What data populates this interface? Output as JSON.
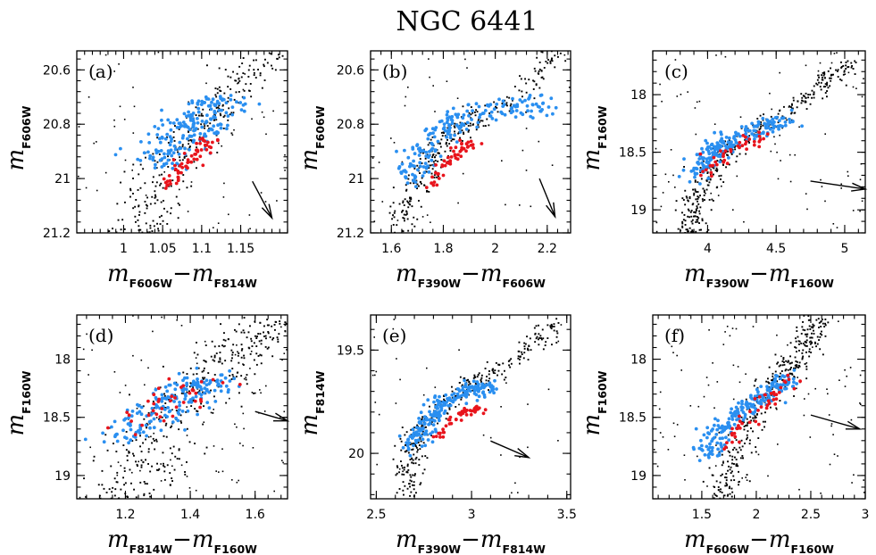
{
  "title": "NGC 6441",
  "colors": {
    "first_gen": "#2a8ff0",
    "second_gen": "#e8141c",
    "field": "#000000"
  },
  "chart_data": [
    {
      "type": "scatter",
      "panel": "(a)",
      "xlabel": {
        "m": "m",
        "s1": "F606W",
        "dash": "−",
        "m2": "m",
        "s2": "F814W"
      },
      "ylabel": {
        "m": "m",
        "s1": "F606W"
      },
      "xlim": [
        0.94,
        1.21
      ],
      "ylim": [
        21.2,
        20.53
      ],
      "xticks": [
        1,
        1.05,
        1.1,
        1.15
      ],
      "xtick_labels": [
        "1",
        "1.05",
        "1.1",
        "1.15"
      ],
      "yticks": [
        20.6,
        20.8,
        21,
        21.2
      ],
      "ytick_labels": [
        "20.6",
        "20.8",
        "21",
        "21.2"
      ],
      "arrow": {
        "x1": 1.165,
        "y1": 21.01,
        "x2": 1.19,
        "y2": 21.145
      },
      "blue_seq": {
        "x": [
          1.04,
          1.07,
          1.1,
          1.13
        ],
        "y": [
          20.98,
          20.85,
          20.78,
          20.7
        ],
        "scatter": 0.022,
        "n": 200
      },
      "red_seq": {
        "x": [
          1.05,
          1.075,
          1.1,
          1.115
        ],
        "y": [
          21.04,
          20.97,
          20.9,
          20.85
        ],
        "scatter": 0.009,
        "n": 60
      },
      "field_seq": {
        "x": [
          1.01,
          1.03,
          1.06,
          1.1,
          1.15,
          1.2
        ],
        "y": [
          21.25,
          21.1,
          20.95,
          20.8,
          20.65,
          20.5
        ],
        "scatter": 0.02,
        "n": 320
      },
      "noise": 60
    },
    {
      "type": "scatter",
      "panel": "(b)",
      "xlabel": {
        "m": "m",
        "s1": "F390W",
        "dash": "−",
        "m2": "m",
        "s2": "F606W"
      },
      "ylabel": {
        "m": "m",
        "s1": "F606W"
      },
      "xlim": [
        1.52,
        2.29
      ],
      "ylim": [
        21.2,
        20.53
      ],
      "xticks": [
        1.6,
        1.8,
        2,
        2.2
      ],
      "xtick_labels": [
        "1.6",
        "1.8",
        "2",
        "2.2"
      ],
      "yticks": [
        20.6,
        20.8,
        21,
        21.2
      ],
      "ytick_labels": [
        "20.6",
        "20.8",
        "21",
        "21.2"
      ],
      "arrow": {
        "x1": 2.17,
        "y1": 21.0,
        "x2": 2.23,
        "y2": 21.14
      },
      "blue_seq": {
        "x": [
          1.66,
          1.72,
          1.8,
          1.9,
          2.05,
          2.2
        ],
        "y": [
          21.0,
          20.92,
          20.82,
          20.76,
          20.74,
          20.73
        ],
        "scatter": 0.035,
        "n": 200
      },
      "red_seq": {
        "x": [
          1.75,
          1.8,
          1.86,
          1.92
        ],
        "y": [
          21.03,
          20.96,
          20.9,
          20.86
        ],
        "scatter": 0.02,
        "n": 50
      },
      "field_seq": {
        "x": [
          1.62,
          1.64,
          1.68,
          1.74,
          1.8,
          1.9,
          2.05,
          2.18,
          2.25
        ],
        "y": [
          21.25,
          21.15,
          21.05,
          20.95,
          20.85,
          20.8,
          20.72,
          20.62,
          20.5
        ],
        "scatter": 0.03,
        "n": 320
      },
      "noise": 40
    },
    {
      "type": "scatter",
      "panel": "(c)",
      "xlabel": {
        "m": "m",
        "s1": "F390W",
        "dash": "−",
        "m2": "m",
        "s2": "F160W"
      },
      "ylabel": {
        "m": "m",
        "s1": "F160W"
      },
      "xlim": [
        3.6,
        5.15
      ],
      "ylim": [
        19.2,
        17.62
      ],
      "xticks": [
        4,
        4.5,
        5
      ],
      "xtick_labels": [
        "4",
        "4.5",
        "5"
      ],
      "yticks": [
        18,
        18.5,
        19
      ],
      "ytick_labels": [
        "18",
        "18.5",
        "19"
      ],
      "arrow": {
        "x1": 4.75,
        "y1": 18.75,
        "x2": 5.15,
        "y2": 18.82
      },
      "blue_seq": {
        "x": [
          3.9,
          4.0,
          4.1,
          4.3,
          4.6
        ],
        "y": [
          18.7,
          18.55,
          18.45,
          18.32,
          18.22
        ],
        "scatter": 0.06,
        "n": 200
      },
      "red_seq": {
        "x": [
          3.95,
          4.1,
          4.25,
          4.4
        ],
        "y": [
          18.72,
          18.55,
          18.43,
          18.34
        ],
        "scatter": 0.04,
        "n": 40
      },
      "field_seq": {
        "x": [
          3.85,
          3.9,
          4.0,
          4.2,
          4.5,
          4.8,
          5.05
        ],
        "y": [
          19.25,
          19.0,
          18.7,
          18.42,
          18.2,
          17.95,
          17.7
        ],
        "scatter": 0.06,
        "n": 360
      },
      "noise": 80
    },
    {
      "type": "scatter",
      "panel": "(d)",
      "xlabel": {
        "m": "m",
        "s1": "F814W",
        "dash": "−",
        "m2": "m",
        "s2": "F160W"
      },
      "ylabel": {
        "m": "m",
        "s1": "F160W"
      },
      "xlim": [
        1.05,
        1.7
      ],
      "ylim": [
        19.2,
        17.62
      ],
      "xticks": [
        1.2,
        1.4,
        1.6
      ],
      "xtick_labels": [
        "1.2",
        "1.4",
        "1.6"
      ],
      "yticks": [
        18,
        18.5,
        19
      ],
      "ytick_labels": [
        "18",
        "18.5",
        "19"
      ],
      "arrow": {
        "x1": 1.6,
        "y1": 18.45,
        "x2": 1.7,
        "y2": 18.53
      },
      "blue_seq": {
        "x": [
          1.2,
          1.28,
          1.35,
          1.42,
          1.48
        ],
        "y": [
          18.68,
          18.5,
          18.35,
          18.25,
          18.15
        ],
        "scatter": 0.06,
        "n": 180
      },
      "red_seq": {
        "x": [
          1.22,
          1.3,
          1.38,
          1.45
        ],
        "y": [
          18.6,
          18.45,
          18.3,
          18.2
        ],
        "scatter": 0.05,
        "n": 40
      },
      "field_seq": {
        "x": [
          1.22,
          1.24,
          1.3,
          1.4,
          1.5,
          1.58,
          1.66
        ],
        "y": [
          19.25,
          18.95,
          18.65,
          18.35,
          18.05,
          17.85,
          17.65
        ],
        "scatter": 0.07,
        "n": 380
      },
      "noise": 100
    },
    {
      "type": "scatter",
      "panel": "(e)",
      "xlabel": {
        "m": "m",
        "s1": "F390W",
        "dash": "−",
        "m2": "m",
        "s2": "F814W"
      },
      "ylabel": {
        "m": "m",
        "s1": "F814W"
      },
      "xlim": [
        2.47,
        3.52
      ],
      "ylim": [
        20.22,
        19.33
      ],
      "xticks": [
        2.5,
        3,
        3.5
      ],
      "xtick_labels": [
        "2.5",
        "3",
        "3.5"
      ],
      "yticks": [
        19.5,
        20
      ],
      "ytick_labels": [
        "19.5",
        "20"
      ],
      "arrow": {
        "x1": 3.1,
        "y1": 19.94,
        "x2": 3.3,
        "y2": 20.02
      },
      "blue_seq": {
        "x": [
          2.68,
          2.73,
          2.8,
          2.9,
          3.0,
          3.1
        ],
        "y": [
          19.97,
          19.9,
          19.8,
          19.72,
          19.68,
          19.68
        ],
        "scatter": 0.035,
        "n": 200
      },
      "red_seq": {
        "x": [
          2.82,
          2.88,
          2.95,
          3.05
        ],
        "y": [
          19.92,
          19.86,
          19.8,
          19.78
        ],
        "scatter": 0.02,
        "n": 45
      },
      "field_seq": {
        "x": [
          2.66,
          2.67,
          2.7,
          2.8,
          2.95,
          3.1,
          3.3,
          3.45
        ],
        "y": [
          20.25,
          20.05,
          19.93,
          19.82,
          19.7,
          19.62,
          19.5,
          19.35
        ],
        "scatter": 0.035,
        "n": 340
      },
      "noise": 40
    },
    {
      "type": "scatter",
      "panel": "(f)",
      "xlabel": {
        "m": "m",
        "s1": "F606W",
        "dash": "−",
        "m2": "m",
        "s2": "F160W"
      },
      "ylabel": {
        "m": "m",
        "s1": "F160W"
      },
      "xlim": [
        1.05,
        3.0
      ],
      "ylim": [
        19.2,
        17.62
      ],
      "xticks": [
        1.5,
        2,
        2.5,
        3
      ],
      "xtick_labels": [
        "1.5",
        "2",
        "2.5",
        "3"
      ],
      "yticks": [
        18,
        18.5,
        19
      ],
      "ytick_labels": [
        "18",
        "18.5",
        "19"
      ],
      "arrow": {
        "x1": 2.5,
        "y1": 18.48,
        "x2": 2.95,
        "y2": 18.6
      },
      "blue_seq": {
        "x": [
          1.5,
          1.7,
          1.9,
          2.1,
          2.3
        ],
        "y": [
          18.85,
          18.6,
          18.42,
          18.3,
          18.15
        ],
        "scatter": 0.07,
        "n": 200
      },
      "red_seq": {
        "x": [
          1.7,
          1.9,
          2.1,
          2.3
        ],
        "y": [
          18.8,
          18.55,
          18.35,
          18.15
        ],
        "scatter": 0.05,
        "n": 45
      },
      "field_seq": {
        "x": [
          1.7,
          1.75,
          1.9,
          2.1,
          2.3,
          2.45,
          2.6
        ],
        "y": [
          19.25,
          18.95,
          18.6,
          18.3,
          18.05,
          17.85,
          17.65
        ],
        "scatter": 0.08,
        "n": 360
      },
      "noise": 100
    }
  ]
}
